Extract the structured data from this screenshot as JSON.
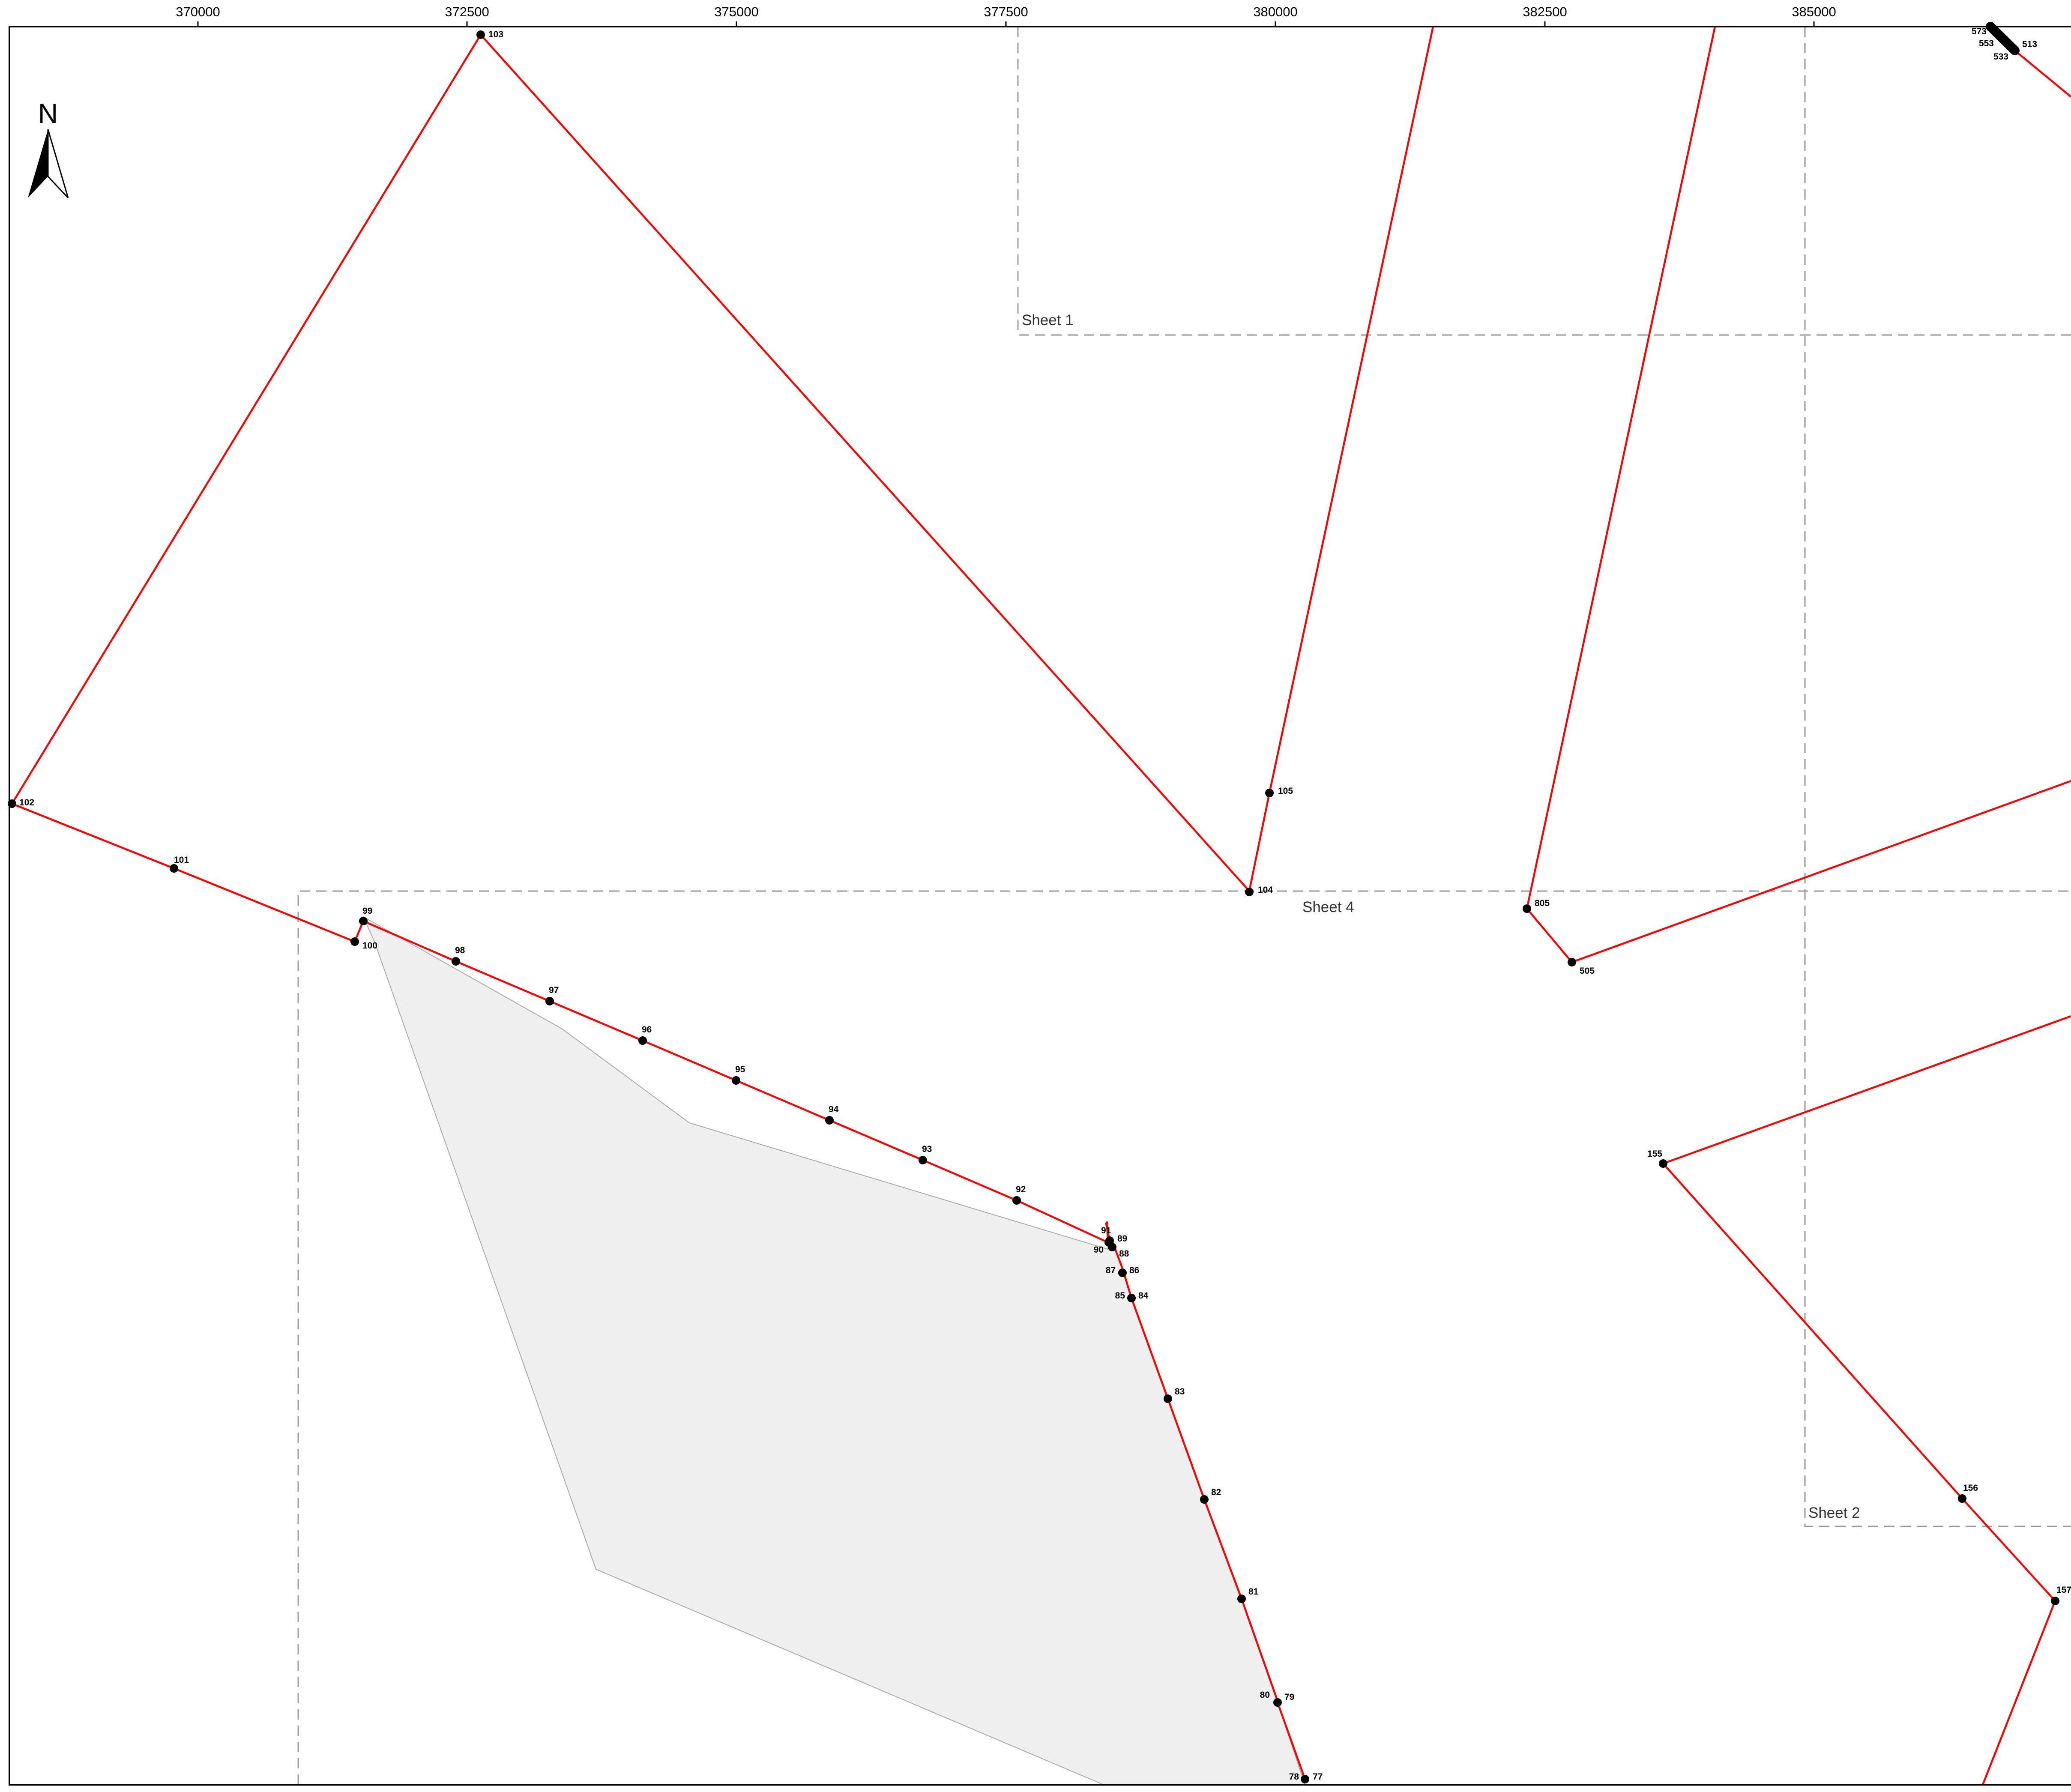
{
  "map": {
    "colors": {
      "route": "#ff0000",
      "points": "#000000",
      "parcel_fill": "#efefef",
      "parcel_stroke": "#aaaaaa",
      "sheet_lines": "#999999",
      "frame": "#000000"
    },
    "north_arrow": {
      "label": "N",
      "icon": "north-arrow-icon"
    },
    "x_ticks": [
      "370000",
      "372500",
      "375000",
      "377500",
      "380000",
      "382500",
      "385000"
    ],
    "sheets": [
      "Sheet 1",
      "Sheet 4",
      "Sheet 2"
    ],
    "point_labels": {
      "p573": "573",
      "p553": "553",
      "p533": "533",
      "p513": "513",
      "p103": "103",
      "p102": "102",
      "p101": "101",
      "p100": "100",
      "p99": "99",
      "p98": "98",
      "p97": "97",
      "p96": "96",
      "p95": "95",
      "p94": "94",
      "p93": "93",
      "p92": "92",
      "p91": "91",
      "p90": "90",
      "p89": "89",
      "p88": "88",
      "p87": "87",
      "p86": "86",
      "p85": "85",
      "p84": "84",
      "p83": "83",
      "p82": "82",
      "p81": "81",
      "p80": "80",
      "p79": "79",
      "p78": "78",
      "p77": "77",
      "p105": "105",
      "p104": "104",
      "p805": "805",
      "p505": "505",
      "p155": "155",
      "p156": "156",
      "p157": "157"
    }
  }
}
